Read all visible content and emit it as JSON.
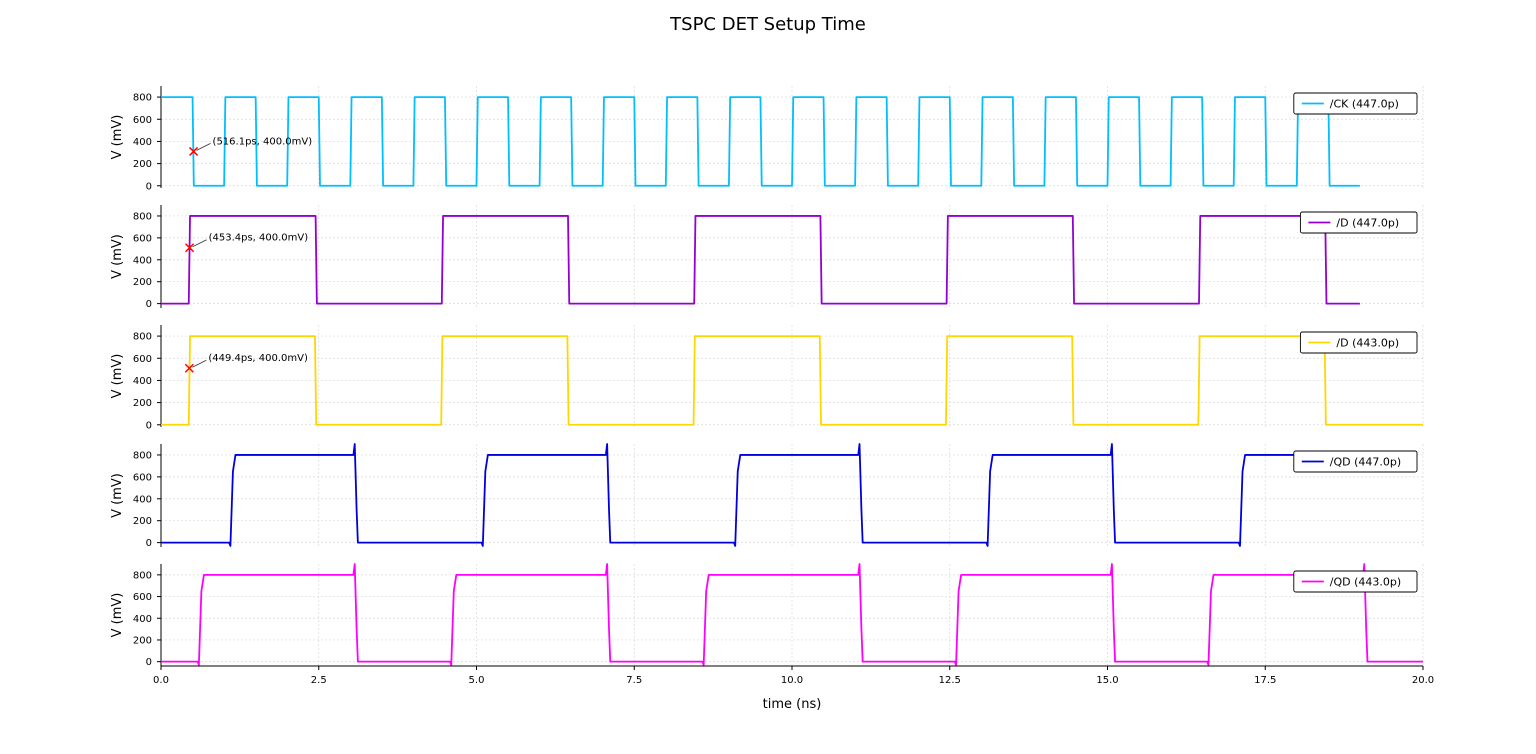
{
  "chart_data": {
    "type": "line",
    "title": "TSPC DET Setup Time",
    "xlabel": "time (ns)",
    "xlim": [
      0,
      20
    ],
    "x_ticks": [
      "0.0",
      "2.5",
      "5.0",
      "7.5",
      "10.0",
      "12.5",
      "15.0",
      "17.5",
      "20.0"
    ],
    "x_tick_values": [
      0,
      2.5,
      5,
      7.5,
      10,
      12.5,
      15,
      17.5,
      20
    ],
    "grid": true,
    "legend_position": "top-right",
    "units": {
      "x": "ns",
      "y": "mV"
    },
    "panels": [
      {
        "ylabel": "V (mV)",
        "ylim": [
          -20,
          900
        ],
        "y_ticks": [
          "0",
          "200",
          "400",
          "600",
          "800"
        ],
        "y_tick_values": [
          0,
          200,
          400,
          600,
          800
        ],
        "series": [
          {
            "name": "/CK (447.0p)",
            "color": "#00bfff",
            "x": [
              0,
              0.5,
              0.52,
              1.0,
              1.02,
              1.5,
              1.52,
              2.0,
              2.02,
              2.5,
              2.52,
              3.0,
              3.02,
              3.5,
              3.52,
              4.0,
              4.02,
              4.5,
              4.52,
              5.0,
              5.02,
              5.5,
              5.52,
              6.0,
              6.02,
              6.5,
              6.52,
              7.0,
              7.02,
              7.5,
              7.52,
              8.0,
              8.02,
              8.5,
              8.52,
              9.0,
              9.02,
              9.5,
              9.52,
              10.0,
              10.02,
              10.5,
              10.52,
              11.0,
              11.02,
              11.5,
              11.52,
              12.0,
              12.02,
              12.5,
              12.52,
              13.0,
              13.02,
              13.5,
              13.52,
              14.0,
              14.02,
              14.5,
              14.52,
              15.0,
              15.02,
              15.5,
              15.52,
              16.0,
              16.02,
              16.5,
              16.52,
              17.0,
              17.02,
              17.5,
              17.52,
              18.0,
              18.02,
              18.5,
              18.52,
              19.0
            ],
            "y": [
              800,
              800,
              0,
              0,
              800,
              800,
              0,
              0,
              800,
              800,
              0,
              0,
              800,
              800,
              0,
              0,
              800,
              800,
              0,
              0,
              800,
              800,
              0,
              0,
              800,
              800,
              0,
              0,
              800,
              800,
              0,
              0,
              800,
              800,
              0,
              0,
              800,
              800,
              0,
              0,
              800,
              800,
              0,
              0,
              800,
              800,
              0,
              0,
              800,
              800,
              0,
              0,
              800,
              800,
              0,
              0,
              800,
              800,
              0,
              0,
              800,
              800,
              0,
              0,
              800,
              800,
              0,
              0,
              800,
              800,
              0,
              0,
              800,
              800,
              0,
              0
            ]
          }
        ],
        "annotation": {
          "label": "(516.1ps, 400.0mV)",
          "x": 0.516,
          "y": 310
        }
      },
      {
        "ylabel": "V (mV)",
        "ylim": [
          -40,
          900
        ],
        "y_ticks": [
          "0",
          "200",
          "400",
          "600",
          "800"
        ],
        "y_tick_values": [
          0,
          200,
          400,
          600,
          800
        ],
        "series": [
          {
            "name": "/D (447.0p)",
            "color": "#9400d3",
            "x": [
              0,
              0.44,
              0.46,
              2.45,
              2.47,
              4.45,
              4.47,
              6.45,
              6.47,
              8.45,
              8.47,
              10.45,
              10.47,
              12.45,
              12.47,
              14.45,
              14.47,
              16.45,
              16.47,
              18.45,
              18.47,
              19.0
            ],
            "y": [
              0,
              0,
              800,
              800,
              0,
              0,
              800,
              800,
              0,
              0,
              800,
              800,
              0,
              0,
              800,
              800,
              0,
              0,
              800,
              800,
              0,
              0
            ]
          }
        ],
        "annotation": {
          "label": "(453.4ps, 400.0mV)",
          "x": 0.453,
          "y": 510
        }
      },
      {
        "ylabel": "V (mV)",
        "ylim": [
          -20,
          900
        ],
        "y_ticks": [
          "0",
          "200",
          "400",
          "600",
          "800"
        ],
        "y_tick_values": [
          0,
          200,
          400,
          600,
          800
        ],
        "series": [
          {
            "name": "/D (443.0p)",
            "color": "#ffd700",
            "x": [
              0,
              0.44,
              0.46,
              2.44,
              2.46,
              4.44,
              4.46,
              6.44,
              6.46,
              8.44,
              8.46,
              10.44,
              10.46,
              12.44,
              12.46,
              14.44,
              14.46,
              16.44,
              16.46,
              18.44,
              18.46,
              20.0
            ],
            "y": [
              0,
              0,
              800,
              800,
              0,
              0,
              800,
              800,
              0,
              0,
              800,
              800,
              0,
              0,
              800,
              800,
              0,
              0,
              800,
              800,
              0,
              0
            ]
          }
        ],
        "annotation": {
          "label": "(449.4ps, 400.0mV)",
          "x": 0.449,
          "y": 510
        }
      },
      {
        "ylabel": "V (mV)",
        "ylim": [
          -40,
          900
        ],
        "y_ticks": [
          "0",
          "200",
          "400",
          "600",
          "800"
        ],
        "y_tick_values": [
          0,
          200,
          400,
          600,
          800
        ],
        "series": [
          {
            "name": "/QD (447.0p)",
            "color": "#0000dd",
            "x": [
              0,
              1.08,
              1.1,
              1.14,
              1.18,
              3.05,
              3.07,
              3.1,
              3.12,
              3.15,
              5.08,
              5.1,
              5.14,
              5.18,
              7.05,
              7.07,
              7.1,
              7.12,
              7.15,
              9.08,
              9.1,
              9.14,
              9.18,
              11.05,
              11.07,
              11.1,
              11.12,
              11.15,
              13.08,
              13.1,
              13.14,
              13.18,
              15.05,
              15.07,
              15.1,
              15.12,
              15.15,
              17.08,
              17.1,
              17.14,
              17.18,
              18.5
            ],
            "y": [
              0,
              0,
              -30,
              650,
              800,
              800,
              900,
              300,
              0,
              0,
              0,
              -30,
              650,
              800,
              800,
              900,
              300,
              0,
              0,
              0,
              -30,
              650,
              800,
              800,
              900,
              300,
              0,
              0,
              0,
              -30,
              650,
              800,
              800,
              900,
              300,
              0,
              0,
              0,
              -30,
              650,
              800,
              800
            ]
          }
        ]
      },
      {
        "ylabel": "V (mV)",
        "ylim": [
          -40,
          900
        ],
        "y_ticks": [
          "0",
          "200",
          "400",
          "600",
          "800"
        ],
        "y_tick_values": [
          0,
          200,
          400,
          600,
          800
        ],
        "series": [
          {
            "name": "/QD (443.0p)",
            "color": "#ff00ff",
            "x": [
              0,
              0.58,
              0.6,
              0.64,
              0.68,
              3.05,
              3.07,
              3.1,
              3.12,
              3.15,
              4.58,
              4.6,
              4.64,
              4.68,
              7.05,
              7.07,
              7.1,
              7.12,
              7.15,
              8.58,
              8.6,
              8.64,
              8.68,
              11.05,
              11.07,
              11.1,
              11.12,
              11.15,
              12.58,
              12.6,
              12.64,
              12.68,
              15.05,
              15.07,
              15.1,
              15.12,
              15.15,
              16.58,
              16.6,
              16.64,
              16.68,
              19.05,
              19.07,
              19.1,
              19.12,
              19.15,
              20.0
            ],
            "y": [
              0,
              0,
              -30,
              650,
              800,
              800,
              900,
              300,
              0,
              0,
              0,
              -30,
              650,
              800,
              800,
              900,
              300,
              0,
              0,
              0,
              -30,
              650,
              800,
              800,
              900,
              300,
              0,
              0,
              0,
              -30,
              650,
              800,
              800,
              900,
              300,
              0,
              0,
              0,
              -30,
              650,
              800,
              800,
              900,
              300,
              0,
              0,
              0
            ]
          }
        ]
      }
    ]
  }
}
